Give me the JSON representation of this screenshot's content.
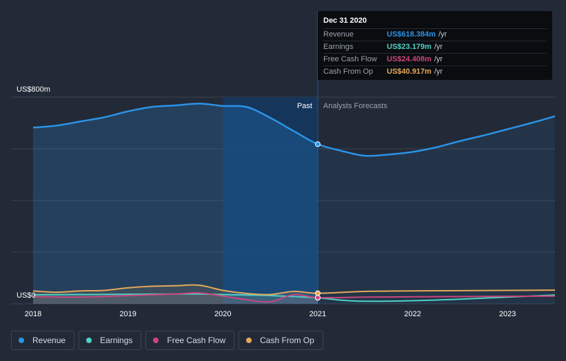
{
  "colors": {
    "revenue": "#2b93e6",
    "earnings": "#4fd1c5",
    "free_cash_flow": "#c9467e",
    "cash_from_op": "#e6a95b",
    "background": "#232a37",
    "past_highlight": "#14365e"
  },
  "tooltip": {
    "date": "Dec 31 2020",
    "rows": [
      {
        "label": "Revenue",
        "value": "US$618.384m",
        "unit": "/yr",
        "color": "#2b93e6"
      },
      {
        "label": "Earnings",
        "value": "US$23.179m",
        "unit": "/yr",
        "color": "#4fd1c5"
      },
      {
        "label": "Free Cash Flow",
        "value": "US$24.408m",
        "unit": "/yr",
        "color": "#c9467e"
      },
      {
        "label": "Cash From Op",
        "value": "US$40.917m",
        "unit": "/yr",
        "color": "#e6a95b"
      }
    ]
  },
  "legend": [
    {
      "label": "Revenue",
      "color": "#2b93e6"
    },
    {
      "label": "Earnings",
      "color": "#4fd1c5"
    },
    {
      "label": "Free Cash Flow",
      "color": "#c9467e"
    },
    {
      "label": "Cash From Op",
      "color": "#e6a95b"
    }
  ],
  "chart_data": {
    "type": "line",
    "y_top_label": "US$800m",
    "y_bottom_label": "US$0",
    "ylim": [
      0,
      800
    ],
    "xlim": [
      2018,
      2023.5
    ],
    "x_ticks": [
      "2018",
      "2019",
      "2020",
      "2021",
      "2022",
      "2023"
    ],
    "x_tick_values": [
      2018,
      2019,
      2020,
      2021,
      2022,
      2023
    ],
    "past_label": "Past",
    "forecast_label": "Analysts Forecasts",
    "past_end": 2021,
    "highlight_start": 2020,
    "grid": true,
    "legend_position": "bottom-left",
    "series": [
      {
        "name": "Revenue",
        "key": "revenue",
        "x": [
          2018,
          2018.25,
          2018.5,
          2018.75,
          2019,
          2019.25,
          2019.5,
          2019.75,
          2020,
          2020.25,
          2020.5,
          2020.75,
          2021,
          2021.25,
          2021.5,
          2021.75,
          2022,
          2022.25,
          2022.5,
          2022.75,
          2023,
          2023.25,
          2023.5
        ],
        "values": [
          682,
          690,
          706,
          722,
          745,
          762,
          768,
          775,
          766,
          762,
          720,
          668,
          618,
          592,
          573,
          578,
          588,
          606,
          630,
          652,
          676,
          700,
          726
        ]
      },
      {
        "name": "Earnings",
        "key": "earnings",
        "x": [
          2018,
          2018.5,
          2019,
          2019.5,
          2019.75,
          2020,
          2020.5,
          2021,
          2021.25,
          2021.5,
          2022,
          2022.5,
          2023,
          2023.5
        ],
        "values": [
          35,
          36,
          37,
          38,
          38,
          36,
          32,
          23,
          14,
          10,
          12,
          18,
          26,
          34
        ]
      },
      {
        "name": "Free Cash Flow",
        "key": "free_cash_flow",
        "x": [
          2018,
          2018.5,
          2019,
          2019.5,
          2019.75,
          2020,
          2020.25,
          2020.5,
          2020.75,
          2021,
          2021.5,
          2022,
          2022.5,
          2023,
          2023.5
        ],
        "values": [
          28,
          26,
          32,
          38,
          42,
          30,
          16,
          8,
          36,
          24,
          26,
          27,
          28,
          29,
          30
        ]
      },
      {
        "name": "Cash From Op",
        "key": "cash_from_op",
        "x": [
          2018,
          2018.25,
          2018.5,
          2018.75,
          2019,
          2019.25,
          2019.5,
          2019.75,
          2020,
          2020.25,
          2020.5,
          2020.75,
          2021,
          2021.5,
          2022,
          2022.5,
          2023,
          2023.5
        ],
        "values": [
          50,
          45,
          50,
          52,
          62,
          68,
          70,
          72,
          52,
          40,
          36,
          48,
          41,
          48,
          50,
          51,
          52,
          53
        ]
      }
    ],
    "highlight_point_x": 2021
  }
}
